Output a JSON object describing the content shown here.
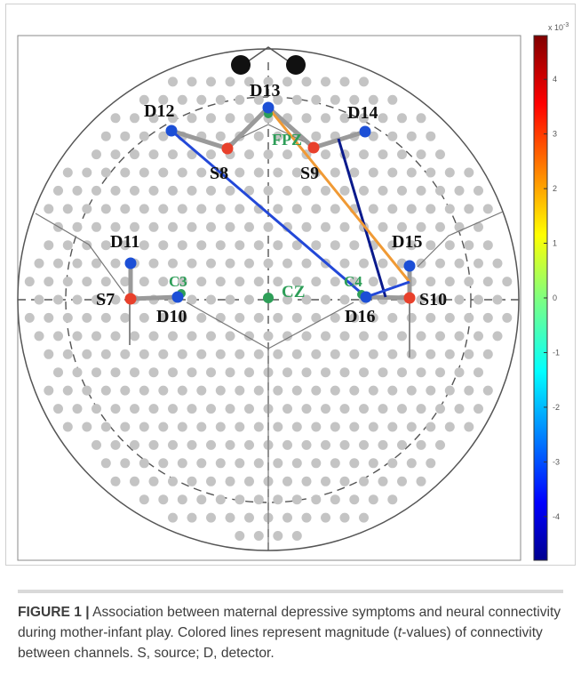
{
  "figure": {
    "labels": {
      "s7": "S7",
      "s8": "S8",
      "s9": "S9",
      "s10": "S10",
      "d10": "D10",
      "d11": "D11",
      "d12": "D12",
      "d13": "D13",
      "d14": "D14",
      "d15": "D15",
      "d16": "D16",
      "fpz": "FPZ",
      "c3": "C3",
      "c4": "C4",
      "cz": "CZ"
    },
    "colors": {
      "source": "#e8402b",
      "detector": "#1c4fd6",
      "eeg_landmark": "#2e9e58",
      "channel_line": "#9a9a9a",
      "grid_dot": "#c4c4c4",
      "link_blue": "#2348d8",
      "link_navy": "#0a1a8c",
      "link_orange": "#f09a35"
    },
    "colorbar": {
      "exponent": "x 10",
      "exponent_sup": "-3",
      "ticks": [
        "4",
        "3",
        "2",
        "1",
        "0",
        "-1",
        "-2",
        "-3",
        "-4"
      ],
      "range": [
        -4.8,
        4.8
      ],
      "colormap": "jet"
    }
  },
  "caption": {
    "label": "FIGURE 1 |",
    "text": "Association between maternal depressive symptoms and neural connectivity during mother-infant play. Colored lines represent magnitude (",
    "italic": "t",
    "text_end": "-values) of connectivity between channels. S, source; D, detector."
  }
}
